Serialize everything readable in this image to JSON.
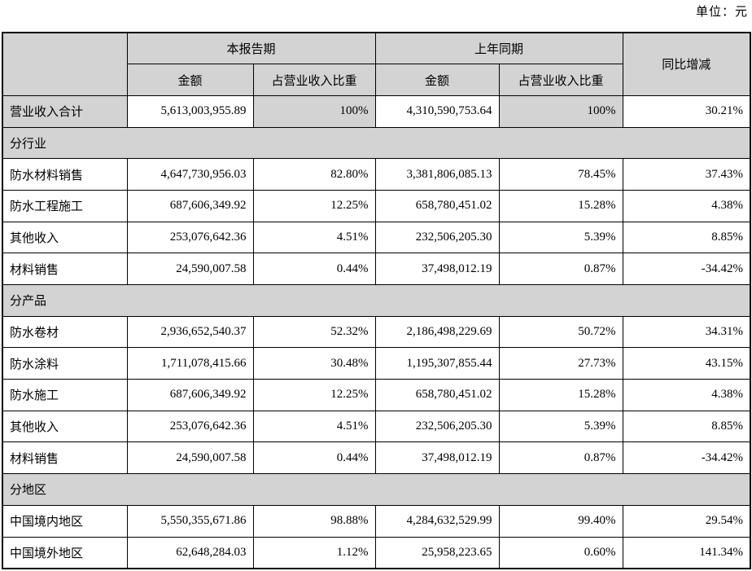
{
  "unit_label": "单位：元",
  "table": {
    "header": {
      "current_period": "本报告期",
      "prior_period": "上年同期",
      "yoy_change": "同比增减",
      "amount": "金额",
      "share": "占营业收入比重"
    },
    "rows": [
      {
        "type": "total",
        "label": "营业收入合计",
        "cur_amount": "5,613,003,955.89",
        "cur_share": "100%",
        "prior_amount": "4,310,590,753.64",
        "prior_share": "100%",
        "yoy": "30.21%"
      },
      {
        "type": "section",
        "label": "分行业"
      },
      {
        "type": "data",
        "label": "防水材料销售",
        "cur_amount": "4,647,730,956.03",
        "cur_share": "82.80%",
        "prior_amount": "3,381,806,085.13",
        "prior_share": "78.45%",
        "yoy": "37.43%"
      },
      {
        "type": "data",
        "label": "防水工程施工",
        "cur_amount": "687,606,349.92",
        "cur_share": "12.25%",
        "prior_amount": "658,780,451.02",
        "prior_share": "15.28%",
        "yoy": "4.38%"
      },
      {
        "type": "data",
        "label": "其他收入",
        "cur_amount": "253,076,642.36",
        "cur_share": "4.51%",
        "prior_amount": "232,506,205.30",
        "prior_share": "5.39%",
        "yoy": "8.85%"
      },
      {
        "type": "data",
        "label": "材料销售",
        "cur_amount": "24,590,007.58",
        "cur_share": "0.44%",
        "prior_amount": "37,498,012.19",
        "prior_share": "0.87%",
        "yoy": "-34.42%"
      },
      {
        "type": "section",
        "label": "分产品"
      },
      {
        "type": "data",
        "label": "防水卷材",
        "cur_amount": "2,936,652,540.37",
        "cur_share": "52.32%",
        "prior_amount": "2,186,498,229.69",
        "prior_share": "50.72%",
        "yoy": "34.31%"
      },
      {
        "type": "data",
        "label": "防水涂料",
        "cur_amount": "1,711,078,415.66",
        "cur_share": "30.48%",
        "prior_amount": "1,195,307,855.44",
        "prior_share": "27.73%",
        "yoy": "43.15%"
      },
      {
        "type": "data",
        "label": "防水施工",
        "cur_amount": "687,606,349.92",
        "cur_share": "12.25%",
        "prior_amount": "658,780,451.02",
        "prior_share": "15.28%",
        "yoy": "4.38%"
      },
      {
        "type": "data",
        "label": "其他收入",
        "cur_amount": "253,076,642.36",
        "cur_share": "4.51%",
        "prior_amount": "232,506,205.30",
        "prior_share": "5.39%",
        "yoy": "8.85%"
      },
      {
        "type": "data",
        "label": "材料销售",
        "cur_amount": "24,590,007.58",
        "cur_share": "0.44%",
        "prior_amount": "37,498,012.19",
        "prior_share": "0.87%",
        "yoy": "-34.42%"
      },
      {
        "type": "section",
        "label": "分地区"
      },
      {
        "type": "data",
        "label": "中国境内地区",
        "cur_amount": "5,550,355,671.86",
        "cur_share": "98.88%",
        "prior_amount": "4,284,632,529.99",
        "prior_share": "99.40%",
        "yoy": "29.54%"
      },
      {
        "type": "data",
        "label": "中国境外地区",
        "cur_amount": "62,648,284.03",
        "cur_share": "1.12%",
        "prior_amount": "25,958,223.65",
        "prior_share": "0.60%",
        "yoy": "141.34%"
      }
    ]
  }
}
